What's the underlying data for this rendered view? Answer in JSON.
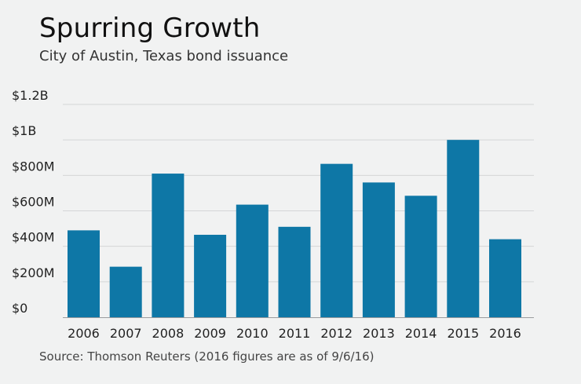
{
  "title": "Spurring Growth",
  "subtitle": "City of Austin, Texas bond issuance",
  "source": "Source: Thomson Reuters (2016 figures are as of 9/6/16)",
  "colors": {
    "bar": "#0e77a6",
    "grid": "#d4d6d7",
    "axis": "#9a9c9e",
    "background": "#f1f2f2"
  },
  "chart_data": {
    "type": "bar",
    "title": "Spurring Growth",
    "subtitle": "City of Austin, Texas bond issuance",
    "xlabel": "",
    "ylabel": "",
    "categories": [
      "2006",
      "2007",
      "2008",
      "2009",
      "2010",
      "2011",
      "2012",
      "2013",
      "2014",
      "2015",
      "2016"
    ],
    "values": [
      490,
      285,
      810,
      465,
      635,
      510,
      865,
      760,
      685,
      1000,
      440
    ],
    "unit": "millions of dollars",
    "ylim": [
      0,
      1200
    ],
    "yticks": [
      0,
      200,
      400,
      600,
      800,
      1000,
      1200
    ],
    "ytick_labels": [
      "$0",
      "$200M",
      "$400M",
      "$600M",
      "$800M",
      "$1B",
      "$1.2B"
    ],
    "grid": true,
    "legend": "none"
  }
}
